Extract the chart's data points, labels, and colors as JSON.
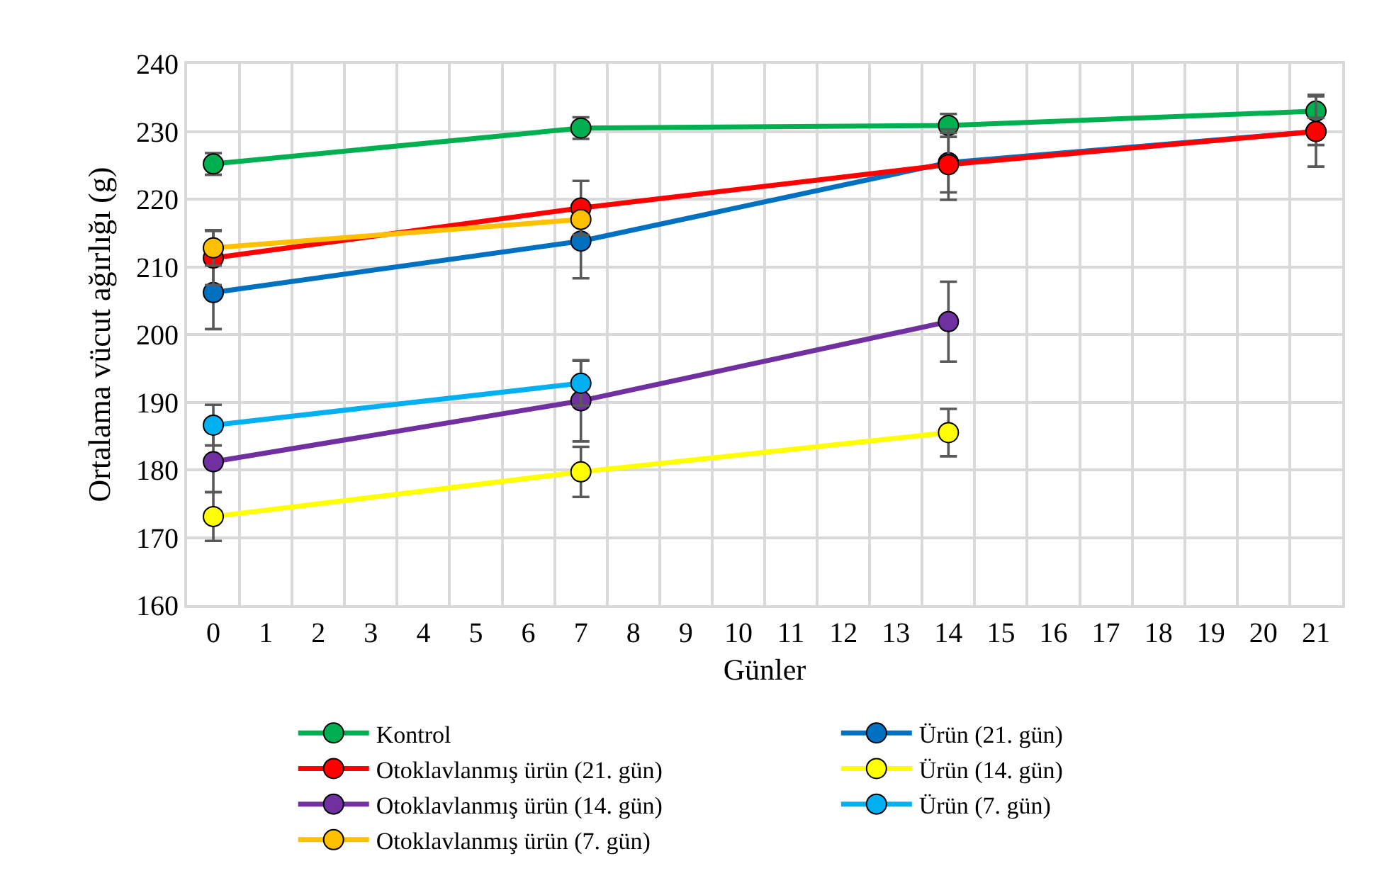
{
  "chart_data": {
    "type": "line",
    "xlabel": "Günler",
    "ylabel": "Ortalama vücut ağırlığı (g)",
    "x": [
      0,
      7,
      14,
      21
    ],
    "xlim": [
      -0.5,
      21.5
    ],
    "xticks": [
      0,
      1,
      2,
      3,
      4,
      5,
      6,
      7,
      8,
      9,
      10,
      11,
      12,
      13,
      14,
      15,
      16,
      17,
      18,
      19,
      20,
      21
    ],
    "ylim": [
      160,
      240
    ],
    "yticks": [
      160,
      170,
      180,
      190,
      200,
      210,
      220,
      230,
      240
    ],
    "grid": true,
    "legend": "bottom",
    "marker": "circle",
    "line_style": "solid",
    "series": [
      {
        "name": "Kontrol",
        "color": "#00b050",
        "values": [
          225.2,
          230.5,
          230.9,
          233.0
        ],
        "errors": [
          1.6,
          1.6,
          1.7,
          2.4
        ]
      },
      {
        "name": "Ürün (21. gün)",
        "color": "#0070c0",
        "values": [
          206.2,
          213.8,
          225.4,
          230.0
        ],
        "errors": [
          5.4,
          5.5,
          4.4,
          2.0
        ]
      },
      {
        "name": "Otoklavlanmış ürün (21. gün)",
        "color": "#ff0000",
        "values": [
          211.3,
          218.7,
          225.1,
          230.0
        ],
        "errors": [
          4.0,
          4.0,
          5.2,
          5.2
        ]
      },
      {
        "name": "Ürün (14. gün)",
        "color": "#ffff00",
        "values": [
          173.1,
          179.7,
          185.5,
          null
        ],
        "errors": [
          3.6,
          3.7,
          3.5,
          null
        ]
      },
      {
        "name": "Otoklavlanmış ürün (14. gün)",
        "color": "#7030a0",
        "values": [
          181.2,
          190.2,
          201.9,
          null
        ],
        "errors": [
          4.5,
          6.0,
          5.9,
          null
        ]
      },
      {
        "name": "Ürün (7. gün)",
        "color": "#00b0f0",
        "values": [
          186.6,
          192.8,
          null,
          null
        ],
        "errors": [
          3.0,
          3.3,
          null,
          null
        ]
      },
      {
        "name": "Otoklavlanmış ürün (7. gün)",
        "color": "#ffc000",
        "values": [
          212.8,
          217.0,
          null,
          null
        ],
        "errors": [
          2.6,
          null,
          null,
          null
        ]
      }
    ]
  }
}
